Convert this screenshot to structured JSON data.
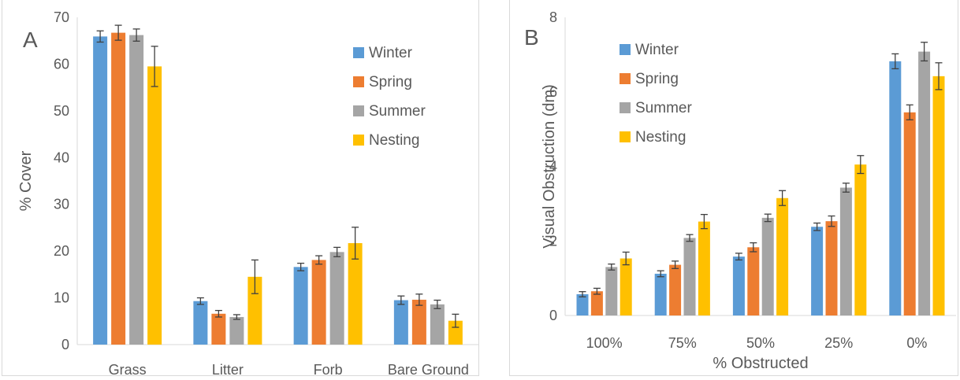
{
  "colors": {
    "Winter": "#5b9bd5",
    "Spring": "#ed7d31",
    "Summer": "#a5a5a5",
    "Nesting": "#ffc000",
    "error_bar": "#404040",
    "axis": "#d9d9d9",
    "text": "#595959"
  },
  "chart_data": [
    {
      "type": "bar",
      "panel_label": "A",
      "title": "",
      "xlabel": "",
      "ylabel": "% Cover",
      "ylim": [
        0,
        70
      ],
      "yticks": [
        0,
        10,
        20,
        30,
        40,
        50,
        60,
        70
      ],
      "grid": false,
      "legend_position": "top-right",
      "categories": [
        "Grass",
        "Litter",
        "Forb",
        "Bare Ground"
      ],
      "series": [
        {
          "name": "Winter",
          "values": [
            65.9,
            9.3,
            16.6,
            9.5
          ],
          "errors": [
            1.2,
            0.7,
            0.8,
            0.9
          ]
        },
        {
          "name": "Spring",
          "values": [
            66.7,
            6.6,
            18.1,
            9.6
          ],
          "errors": [
            1.6,
            0.7,
            0.9,
            1.2
          ]
        },
        {
          "name": "Summer",
          "values": [
            66.2,
            5.9,
            19.8,
            8.6
          ],
          "errors": [
            1.3,
            0.5,
            1.0,
            0.9
          ]
        },
        {
          "name": "Nesting",
          "values": [
            59.5,
            14.5,
            21.7,
            5.1
          ],
          "errors": [
            4.3,
            3.6,
            3.4,
            1.4
          ]
        }
      ]
    },
    {
      "type": "bar",
      "panel_label": "B",
      "title": "",
      "xlabel": "% Obstructed",
      "ylabel": "Visual Obstruction (dm)",
      "ylim": [
        0,
        8
      ],
      "yticks": [
        0,
        2,
        4,
        6,
        8
      ],
      "grid": false,
      "legend_position": "top-left",
      "categories": [
        "100%",
        "75%",
        "50%",
        "25%",
        "0%"
      ],
      "series": [
        {
          "name": "Winter",
          "values": [
            0.57,
            1.12,
            1.58,
            2.38,
            6.82
          ],
          "errors": [
            0.07,
            0.08,
            0.09,
            0.1,
            0.2
          ]
        },
        {
          "name": "Spring",
          "values": [
            0.65,
            1.36,
            1.83,
            2.53,
            5.45
          ],
          "errors": [
            0.08,
            0.1,
            0.12,
            0.14,
            0.2
          ]
        },
        {
          "name": "Summer",
          "values": [
            1.3,
            2.08,
            2.62,
            3.43,
            7.08
          ],
          "errors": [
            0.08,
            0.09,
            0.1,
            0.12,
            0.25
          ]
        },
        {
          "name": "Nesting",
          "values": [
            1.53,
            2.52,
            3.15,
            4.05,
            6.42
          ],
          "errors": [
            0.17,
            0.19,
            0.2,
            0.24,
            0.36
          ]
        }
      ]
    }
  ]
}
